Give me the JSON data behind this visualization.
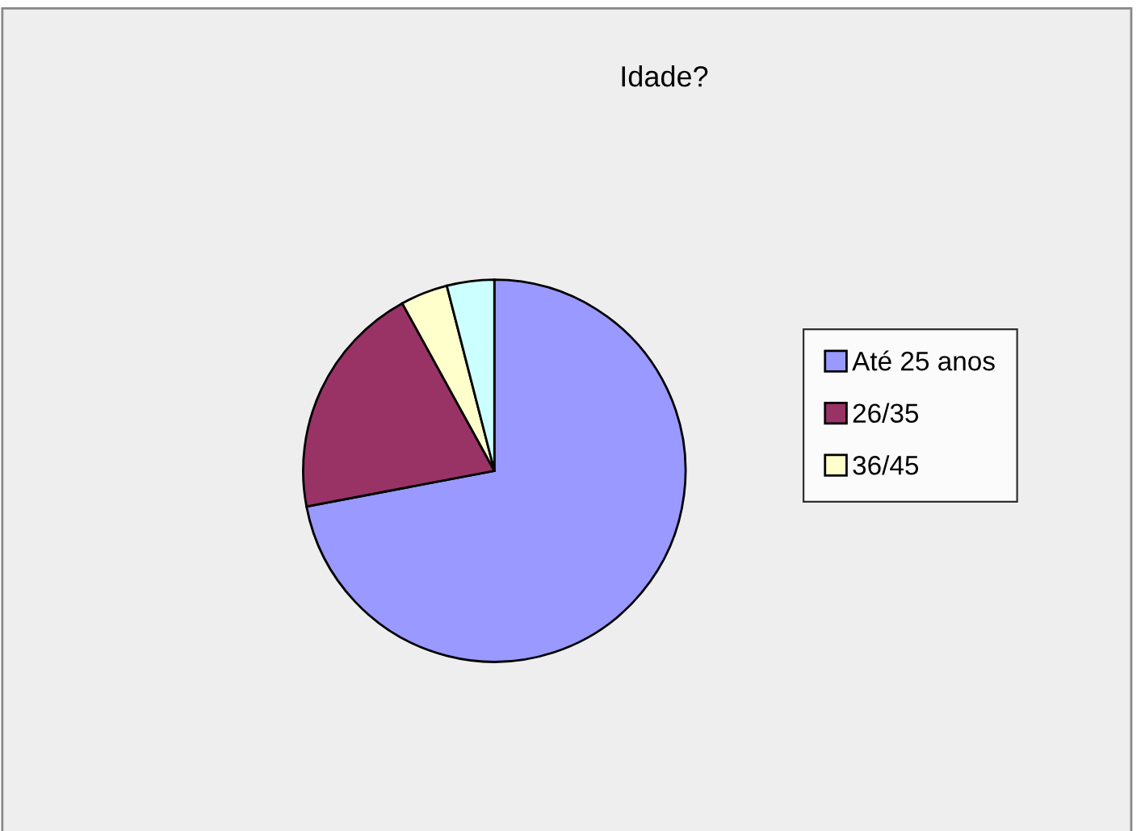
{
  "chart_data": {
    "type": "pie",
    "title": "Idade?",
    "categories": [
      "Até 25 anos",
      "26/35",
      "36/45",
      null
    ],
    "values": [
      72,
      20,
      4,
      4
    ],
    "colors": [
      "#9999ff",
      "#993366",
      "#ffffcc",
      "#ccffff"
    ],
    "legend": "right"
  }
}
